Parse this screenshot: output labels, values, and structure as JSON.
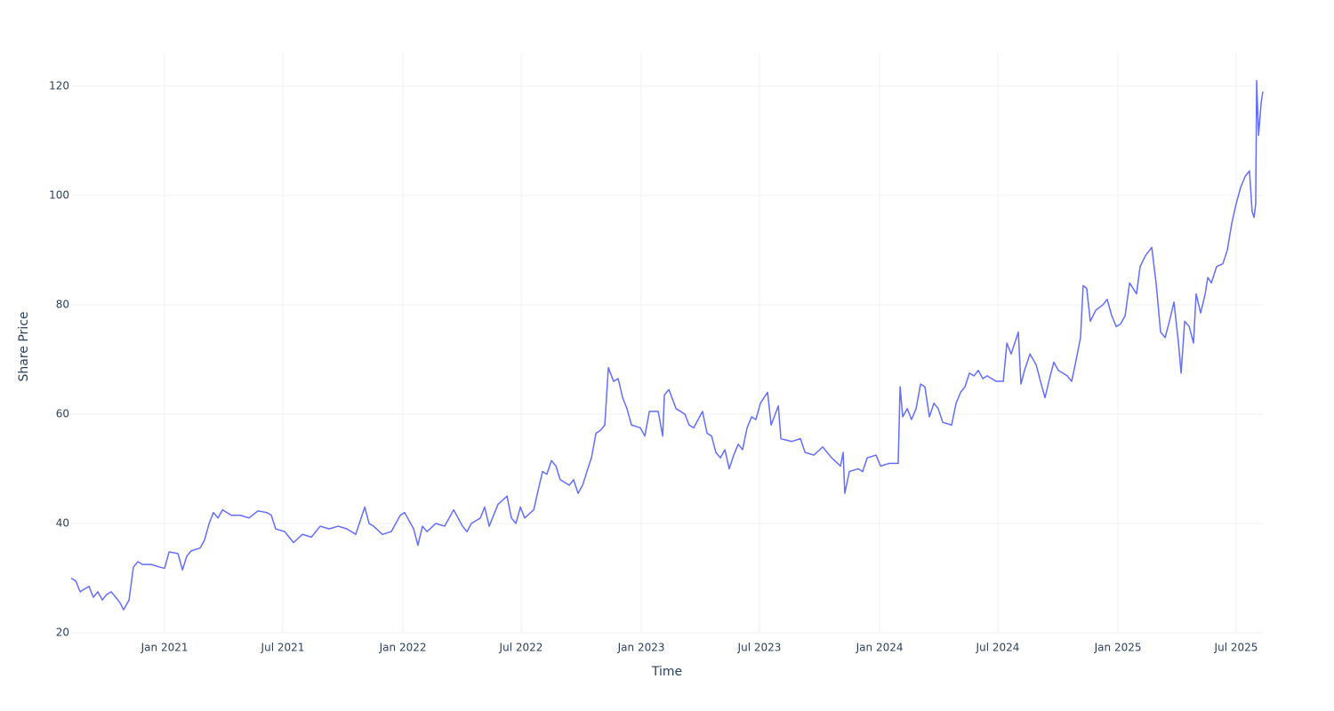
{
  "chart_data": {
    "type": "line",
    "x_label": "Time",
    "y_label": "Share Price",
    "xlim": [
      2020.608,
      2025.608
    ],
    "ylim": [
      20,
      126
    ],
    "xticks": [
      {
        "value": 2021.0,
        "label": "Jan 2021"
      },
      {
        "value": 2021.496,
        "label": "Jul 2021"
      },
      {
        "value": 2022.0,
        "label": "Jan 2022"
      },
      {
        "value": 2022.496,
        "label": "Jul 2022"
      },
      {
        "value": 2023.0,
        "label": "Jan 2023"
      },
      {
        "value": 2023.496,
        "label": "Jul 2023"
      },
      {
        "value": 2024.0,
        "label": "Jan 2024"
      },
      {
        "value": 2024.496,
        "label": "Jul 2024"
      },
      {
        "value": 2025.0,
        "label": "Jan 2025"
      },
      {
        "value": 2025.496,
        "label": "Jul 2025"
      }
    ],
    "yticks": [
      20,
      40,
      60,
      80,
      100,
      120
    ],
    "grid": true,
    "color": "#636efa",
    "x": [
      2020.608,
      2020.627,
      2020.646,
      2020.664,
      2020.683,
      2020.701,
      2020.72,
      2020.739,
      2020.757,
      2020.776,
      2020.795,
      2020.813,
      2020.828,
      2020.851,
      2020.869,
      2020.888,
      2020.907,
      2020.944,
      2020.981,
      2021.0,
      2021.019,
      2021.056,
      2021.075,
      2021.093,
      2021.112,
      2021.149,
      2021.168,
      2021.187,
      2021.205,
      2021.224,
      2021.243,
      2021.28,
      2021.317,
      2021.354,
      2021.392,
      2021.429,
      2021.448,
      2021.466,
      2021.504,
      2021.541,
      2021.578,
      2021.616,
      2021.653,
      2021.69,
      2021.728,
      2021.765,
      2021.802,
      2021.84,
      2021.858,
      2021.877,
      2021.914,
      2021.951,
      2021.989,
      2022.007,
      2022.026,
      2022.045,
      2022.063,
      2022.082,
      2022.101,
      2022.138,
      2022.175,
      2022.213,
      2022.25,
      2022.269,
      2022.287,
      2022.325,
      2022.343,
      2022.362,
      2022.399,
      2022.437,
      2022.455,
      2022.474,
      2022.493,
      2022.511,
      2022.549,
      2022.567,
      2022.586,
      2022.604,
      2022.623,
      2022.642,
      2022.66,
      2022.698,
      2022.716,
      2022.735,
      2022.754,
      2022.772,
      2022.791,
      2022.81,
      2022.828,
      2022.847,
      2022.862,
      2022.884,
      2022.903,
      2022.922,
      2022.94,
      2022.959,
      2022.996,
      2023.015,
      2023.034,
      2023.071,
      2023.09,
      2023.097,
      2023.116,
      2023.146,
      2023.183,
      2023.201,
      2023.22,
      2023.257,
      2023.276,
      2023.295,
      2023.313,
      2023.332,
      2023.351,
      2023.369,
      2023.388,
      2023.407,
      2023.425,
      2023.444,
      2023.463,
      2023.481,
      2023.5,
      2023.53,
      2023.545,
      2023.575,
      2023.586,
      2023.631,
      2023.668,
      2023.687,
      2023.724,
      2023.761,
      2023.799,
      2023.836,
      2023.847,
      2023.854,
      2023.873,
      2023.91,
      2023.929,
      2023.948,
      2023.985,
      2024.004,
      2024.041,
      2024.078,
      2024.086,
      2024.097,
      2024.116,
      2024.134,
      2024.153,
      2024.172,
      2024.19,
      2024.209,
      2024.228,
      2024.246,
      2024.265,
      2024.302,
      2024.321,
      2024.34,
      2024.358,
      2024.377,
      2024.396,
      2024.414,
      2024.433,
      2024.451,
      2024.489,
      2024.519,
      2024.534,
      2024.552,
      2024.582,
      2024.593,
      2024.608,
      2024.631,
      2024.657,
      2024.675,
      2024.694,
      2024.713,
      2024.731,
      2024.75,
      2024.769,
      2024.787,
      2024.806,
      2024.825,
      2024.843,
      2024.854,
      2024.869,
      2024.884,
      2024.907,
      2024.937,
      2024.955,
      2024.974,
      2024.993,
      2025.011,
      2025.03,
      2025.049,
      2025.078,
      2025.093,
      2025.116,
      2025.142,
      2025.16,
      2025.179,
      2025.198,
      2025.216,
      2025.235,
      2025.254,
      2025.265,
      2025.28,
      2025.299,
      2025.317,
      2025.328,
      2025.347,
      2025.366,
      2025.377,
      2025.392,
      2025.414,
      2025.44,
      2025.459,
      2025.478,
      2025.496,
      2025.515,
      2025.534,
      2025.552,
      2025.563,
      2025.571,
      2025.578,
      2025.582,
      2025.59,
      2025.601,
      2025.608
    ],
    "values": [
      30,
      29.5,
      27.5,
      28,
      28.5,
      26.5,
      27.5,
      26,
      27,
      27.5,
      26.5,
      25.5,
      24.2,
      26,
      32,
      33,
      32.5,
      32.5,
      32,
      31.8,
      34.8,
      34.5,
      31.5,
      34,
      35,
      35.5,
      37,
      40,
      42,
      41,
      42.5,
      41.5,
      41.5,
      41,
      42.3,
      42,
      41.5,
      39,
      38.5,
      36.5,
      38,
      37.5,
      39.5,
      39,
      39.5,
      39,
      38,
      43,
      40,
      39.5,
      38,
      38.5,
      41.5,
      42,
      40.5,
      39,
      36,
      39.5,
      38.5,
      40,
      39.5,
      42.5,
      39.5,
      38.5,
      40,
      41,
      43,
      39.5,
      43.5,
      45,
      41,
      40,
      43,
      41,
      42.5,
      46,
      49.5,
      49,
      51.5,
      50.5,
      48,
      47,
      48,
      45.5,
      47,
      49.5,
      52,
      56.5,
      57,
      58,
      68.5,
      66,
      66.5,
      63,
      61,
      58,
      57.5,
      56,
      60.5,
      60.5,
      56,
      63.5,
      64.5,
      61,
      60,
      58,
      57.5,
      60.5,
      56.5,
      56,
      53,
      52,
      53.5,
      50,
      52.5,
      54.5,
      53.5,
      57.5,
      59.5,
      59,
      62,
      64,
      58,
      61.5,
      55.5,
      55,
      55.5,
      53,
      52.5,
      54,
      52,
      50.5,
      53,
      45.5,
      49.5,
      50,
      49.5,
      52,
      52.5,
      50.5,
      51,
      51,
      65,
      59.5,
      61,
      59,
      61,
      65.5,
      65,
      59.5,
      62,
      61,
      58.5,
      58,
      62,
      64,
      65,
      67.5,
      67,
      68,
      66.5,
      67,
      66,
      66,
      73,
      71,
      75,
      65.5,
      68,
      71,
      69,
      66,
      63,
      66.5,
      69.5,
      68,
      67.5,
      67,
      66,
      70,
      74,
      83.5,
      83,
      77,
      79,
      80,
      81,
      78,
      76,
      76.5,
      78,
      84,
      82,
      87,
      89,
      90.5,
      84,
      75,
      74,
      77,
      80.5,
      73,
      67.5,
      77,
      76,
      73,
      82,
      78.5,
      82,
      85,
      84,
      87,
      87.5,
      90,
      95,
      98.5,
      101.5,
      103.5,
      104.5,
      97,
      96,
      98.5,
      121,
      111,
      117,
      119
    ]
  }
}
